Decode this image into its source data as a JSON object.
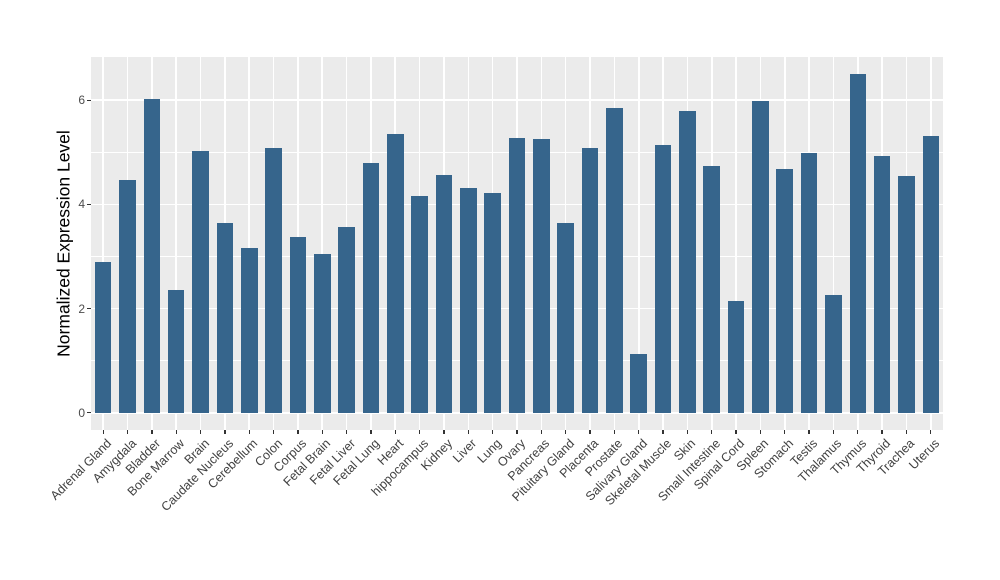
{
  "chart_data": {
    "type": "bar",
    "title": "",
    "xlabel": "",
    "ylabel": "Normalized Expression Level",
    "categories": [
      "Adrenal Gland",
      "Amygdala",
      "Bladder",
      "Bone Marrow",
      "Brain",
      "Caudate Nucleus",
      "Cerebellum",
      "Colon",
      "Corpus",
      "Fetal Brain",
      "Fetal Liver",
      "Fetal Lung",
      "Heart",
      "hippocampus",
      "Kidney",
      "Liver",
      "Lung",
      "Ovary",
      "Pancreas",
      "Pituitary Gland",
      "Placenta",
      "Prostate",
      "Salivary Gland",
      "Skeletal Muscle",
      "Skin",
      "Small Intestine",
      "Spinal Cord",
      "Spleen",
      "Stomach",
      "Testis",
      "Thalamus",
      "Thymus",
      "Thyroid",
      "Trachea",
      "Uterus"
    ],
    "values": [
      2.89,
      4.46,
      6.02,
      2.35,
      5.03,
      3.65,
      3.17,
      5.09,
      3.38,
      3.04,
      3.56,
      4.8,
      5.35,
      4.17,
      4.56,
      4.31,
      4.22,
      5.28,
      5.25,
      3.64,
      5.09,
      5.86,
      1.12,
      5.14,
      5.8,
      4.74,
      2.14,
      5.99,
      4.68,
      4.99,
      2.26,
      6.5,
      4.93,
      4.55,
      5.32
    ],
    "yticks": [
      0,
      2,
      4,
      6
    ],
    "yticks_minor": [
      1,
      3,
      5
    ],
    "ylim": [
      -0.33,
      6.83
    ],
    "grid": {
      "horizontal_major": [
        0,
        2,
        4,
        6
      ],
      "horizontal_minor": [
        1,
        3,
        5
      ],
      "vertical": "category-centers"
    },
    "legend_position": "none",
    "colors": {
      "bar": "#36658C",
      "panel_bg": "#EBEBEB",
      "grid": "#FFFFFF",
      "tick": "#333333",
      "tick_label": "#4D4D4D",
      "x_label": "#404040",
      "axis_title": "#000000",
      "figure_bg": "#FFFFFF"
    }
  }
}
